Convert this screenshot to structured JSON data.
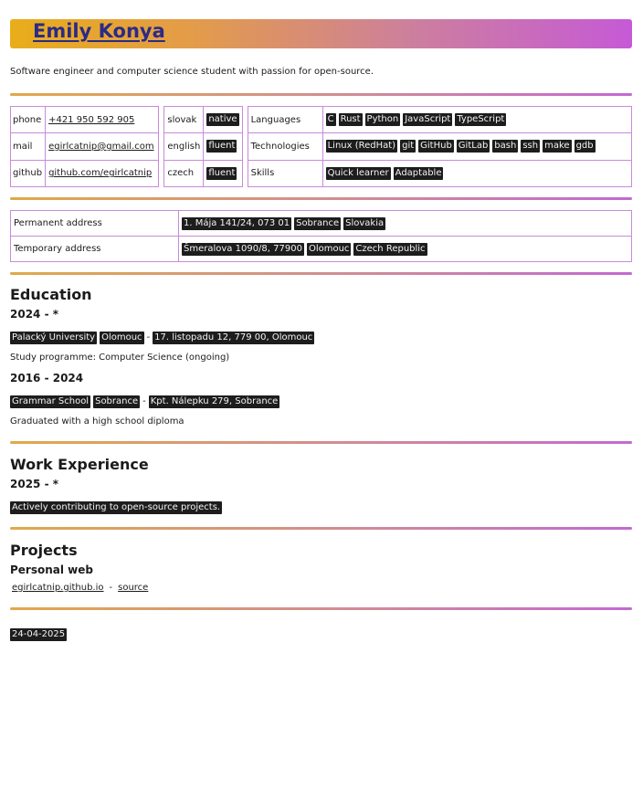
{
  "name": "Emily Konya",
  "tagline": "Software engineer and computer science student with passion for open-source.",
  "contacts": [
    {
      "label": "phone",
      "value": "+421 950 592 905"
    },
    {
      "label": "mail",
      "value": "egirlcatnip@gmail.com"
    },
    {
      "label": "github",
      "value": "github.com/egirlcatnip"
    }
  ],
  "languages_spoken": [
    {
      "language": "slovak",
      "level": "native"
    },
    {
      "language": "english",
      "level": "fluent"
    },
    {
      "language": "czech",
      "level": "fluent"
    }
  ],
  "skills_table": [
    {
      "label": "Languages",
      "items": [
        "C",
        "Rust",
        "Python",
        "JavaScript",
        "TypeScript"
      ]
    },
    {
      "label": "Technologies",
      "items": [
        "Linux (RedHat)",
        "git",
        "GitHub",
        "GitLab",
        "bash",
        "ssh",
        "make",
        "gdb"
      ]
    },
    {
      "label": "Skills",
      "items": [
        "Quick learner",
        "Adaptable"
      ]
    }
  ],
  "addresses": [
    {
      "label": "Permanent address",
      "items": [
        "1. Mája 141/24, 073 01",
        "Sobrance",
        "Slovakia"
      ]
    },
    {
      "label": "Temporary address",
      "items": [
        "Šmeralova 1090/8, 77900",
        "Olomouc",
        "Czech Republic"
      ]
    }
  ],
  "education": {
    "title": "Education",
    "entries": [
      {
        "period": "2024 - *",
        "school": "Palacký University",
        "city": "Olomouc",
        "address": "17. listopadu 12, 779 00, Olomouc",
        "note": "Study programme: Computer Science (ongoing)"
      },
      {
        "period": "2016 - 2024",
        "school": "Grammar School",
        "city": "Sobrance",
        "address": "Kpt. Nálepku 279, Sobrance",
        "note": "Graduated with a high school diploma"
      }
    ]
  },
  "work": {
    "title": "Work Experience",
    "period": "2025 - *",
    "description": "Actively contributing to open-source projects."
  },
  "projects": {
    "title": "Projects",
    "items": [
      {
        "name": "Personal web",
        "link": "egirlcatnip.github.io",
        "source_label": "source"
      }
    ]
  },
  "date": "24-04-2025",
  "separator": "-"
}
